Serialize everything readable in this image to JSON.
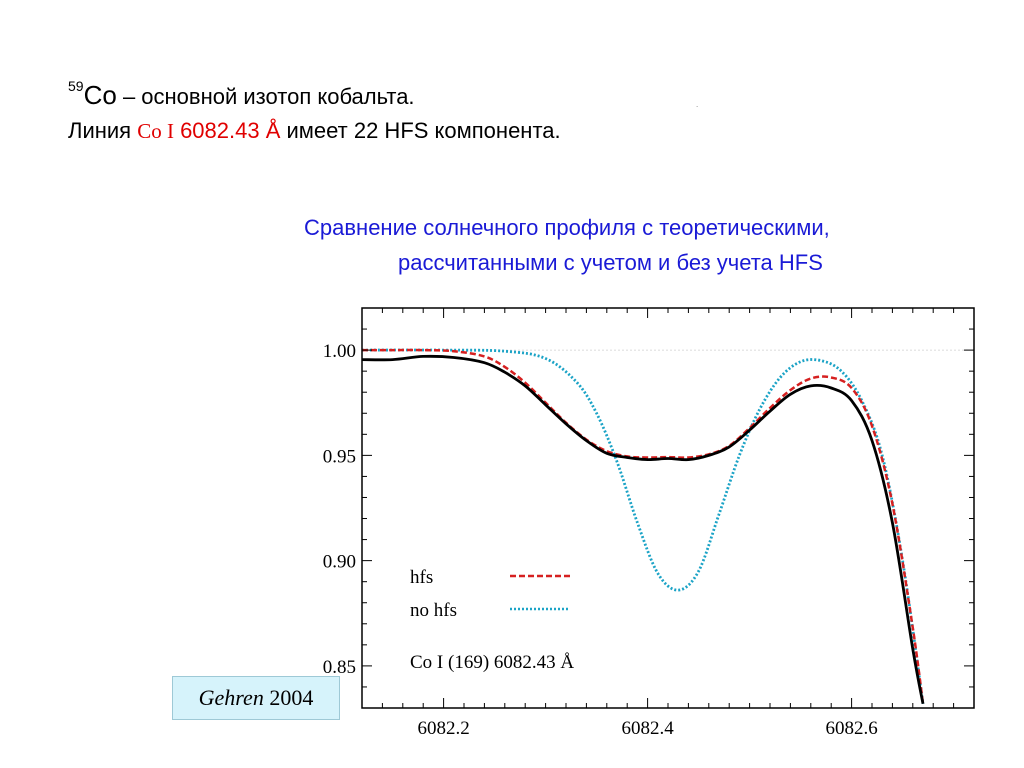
{
  "header": {
    "mass_number": "59",
    "element": "Co",
    "line1_text": " – основной изотоп кобальта.",
    "line2_prefix": "Линия ",
    "line2_species": "Co I",
    "line2_wavelength": " 6082.43 Å",
    "line2_suffix": " имеет 22 HFS компонента.",
    "stray_mark": "."
  },
  "subtitle": {
    "line1": "Сравнение солнечного профиля с теоретическими,",
    "line2": "рассчитанными с учетом и без учета HFS"
  },
  "credit": {
    "author": "Gehren",
    "year": " 2004"
  },
  "colors": {
    "title_blue": "#1a1ad6",
    "highlight_red": "#e00000",
    "hfs": "#d62020",
    "no_hfs": "#1ba3c6",
    "observed": "#000000",
    "credit_bg": "#d6f3fb"
  },
  "chart_data": {
    "type": "line",
    "title": "",
    "xlabel": "",
    "ylabel": "",
    "xlim": [
      6082.12,
      6082.72
    ],
    "ylim": [
      0.83,
      1.02
    ],
    "x_ticks": [
      6082.2,
      6082.4,
      6082.6
    ],
    "x_tick_labels": [
      "6082.2",
      "6082.4",
      "6082.6"
    ],
    "y_ticks": [
      0.85,
      0.9,
      0.95,
      1.0
    ],
    "y_tick_labels": [
      "0.85",
      "0.90",
      "0.95",
      "1.00"
    ],
    "annotation": "Co I (169)  6082.43 Å",
    "legend_position": "bottom-left",
    "series": [
      {
        "key": "observed",
        "style": "solid",
        "color": "#000000",
        "x": [
          6082.12,
          6082.15,
          6082.18,
          6082.21,
          6082.24,
          6082.26,
          6082.28,
          6082.3,
          6082.32,
          6082.34,
          6082.36,
          6082.38,
          6082.4,
          6082.42,
          6082.44,
          6082.46,
          6082.48,
          6082.5,
          6082.52,
          6082.54,
          6082.56,
          6082.58,
          6082.6,
          6082.62,
          6082.64,
          6082.66,
          6082.67
        ],
        "y": [
          0.9955,
          0.9955,
          0.997,
          0.9965,
          0.994,
          0.9895,
          0.983,
          0.974,
          0.965,
          0.957,
          0.951,
          0.949,
          0.948,
          0.9485,
          0.948,
          0.95,
          0.954,
          0.962,
          0.971,
          0.979,
          0.983,
          0.982,
          0.976,
          0.957,
          0.918,
          0.858,
          0.832
        ]
      },
      {
        "key": "hfs",
        "name": "hfs",
        "style": "dashed",
        "color": "#d62020",
        "x": [
          6082.12,
          6082.15,
          6082.18,
          6082.21,
          6082.24,
          6082.26,
          6082.28,
          6082.3,
          6082.32,
          6082.34,
          6082.36,
          6082.38,
          6082.4,
          6082.42,
          6082.44,
          6082.46,
          6082.48,
          6082.5,
          6082.52,
          6082.54,
          6082.56,
          6082.58,
          6082.6,
          6082.62,
          6082.64,
          6082.66,
          6082.67
        ],
        "y": [
          1.0,
          1.0,
          1.0,
          0.9995,
          0.997,
          0.992,
          0.9845,
          0.975,
          0.9655,
          0.9575,
          0.952,
          0.9495,
          0.949,
          0.9492,
          0.949,
          0.9505,
          0.9545,
          0.963,
          0.9725,
          0.981,
          0.9865,
          0.987,
          0.982,
          0.964,
          0.927,
          0.868,
          0.832
        ]
      },
      {
        "key": "no_hfs",
        "name": "no hfs",
        "style": "dotted",
        "color": "#1ba3c6",
        "x": [
          6082.12,
          6082.2,
          6082.26,
          6082.3,
          6082.33,
          6082.35,
          6082.37,
          6082.39,
          6082.41,
          6082.43,
          6082.45,
          6082.47,
          6082.49,
          6082.51,
          6082.53,
          6082.55,
          6082.57,
          6082.59,
          6082.61,
          6082.63,
          6082.65,
          6082.67
        ],
        "y": [
          1.0,
          1.0,
          0.9995,
          0.996,
          0.985,
          0.97,
          0.947,
          0.918,
          0.894,
          0.886,
          0.895,
          0.922,
          0.95,
          0.972,
          0.987,
          0.9945,
          0.995,
          0.99,
          0.976,
          0.95,
          0.9,
          0.832
        ]
      }
    ]
  }
}
